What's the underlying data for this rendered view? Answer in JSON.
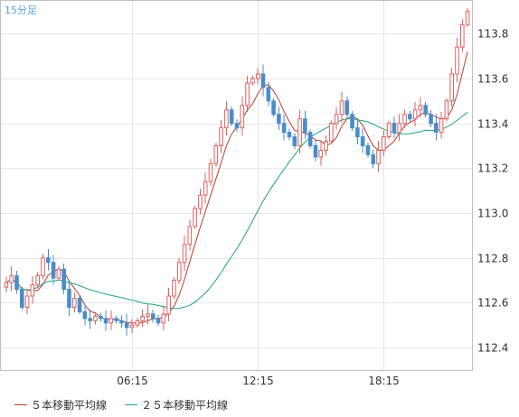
{
  "chart_data": {
    "type": "candlestick",
    "title": "15分足",
    "ylim": [
      112.3,
      113.95
    ],
    "yticks": [
      112.4,
      112.6,
      112.8,
      113.0,
      113.2,
      113.4,
      113.6,
      113.8
    ],
    "ytick_labels": [
      "112.4",
      "112.6",
      "112.8",
      "113.0",
      "113.2",
      "113.4",
      "113.6",
      "113.8"
    ],
    "xticks": [
      {
        "label": "06:15",
        "index": 24
      },
      {
        "label": "12:15",
        "index": 48
      },
      {
        "label": "18:15",
        "index": 72
      }
    ],
    "grid": true,
    "legend_position": "bottom-left",
    "colors": {
      "up_candle": "#e06060",
      "down_candle": "#4a8cc9",
      "ma5": "#c0392b",
      "ma25": "#1fa37a",
      "title": "#4fa7d9"
    },
    "close": [
      112.69,
      112.72,
      112.66,
      112.58,
      112.63,
      112.68,
      112.72,
      112.8,
      112.78,
      112.71,
      112.75,
      112.66,
      112.58,
      112.62,
      112.56,
      112.53,
      112.52,
      112.54,
      112.53,
      112.51,
      112.53,
      112.52,
      112.51,
      112.49,
      112.5,
      112.52,
      112.54,
      112.55,
      112.53,
      112.51,
      112.55,
      112.63,
      112.7,
      112.78,
      112.86,
      112.94,
      113.02,
      113.08,
      113.14,
      113.22,
      113.3,
      113.38,
      113.46,
      113.4,
      113.38,
      113.48,
      113.58,
      113.6,
      113.62,
      113.56,
      113.5,
      113.44,
      113.4,
      113.36,
      113.34,
      113.3,
      113.42,
      113.36,
      113.3,
      113.25,
      113.28,
      113.32,
      113.4,
      113.44,
      113.5,
      113.44,
      113.38,
      113.34,
      113.3,
      113.26,
      113.22,
      113.28,
      113.34,
      113.4,
      113.36,
      113.4,
      113.44,
      113.42,
      113.46,
      113.48,
      113.44,
      113.4,
      113.36,
      113.42,
      113.5,
      113.62,
      113.74,
      113.84,
      113.9
    ],
    "series": [
      {
        "name": "５本移動平均線",
        "kind": "sma",
        "period": 5
      },
      {
        "name": "２５本移動平均線",
        "kind": "sma",
        "period": 25
      }
    ]
  }
}
